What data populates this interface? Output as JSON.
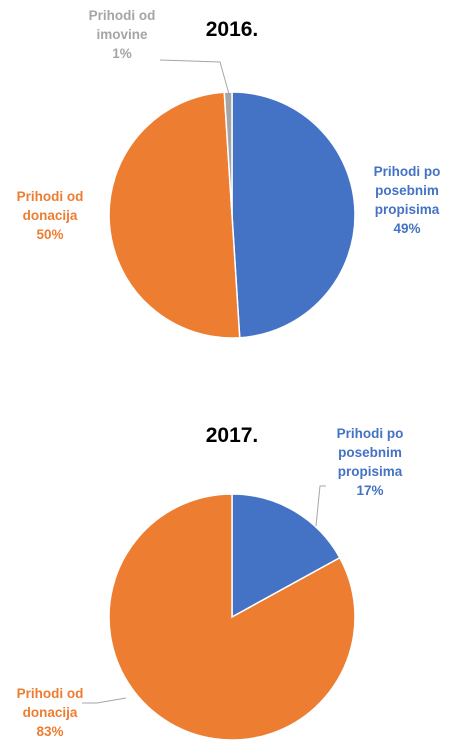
{
  "chart_data": [
    {
      "type": "pie",
      "title": "2016.",
      "categories": [
        "Prihodi po posebnim propisima",
        "Prihodi od donacija",
        "Prihodi od imovine"
      ],
      "values": [
        49,
        50,
        1
      ],
      "value_labels": [
        "49%",
        "50%",
        "1%"
      ],
      "colors": [
        "#4472c4",
        "#ed7d31",
        "#a5a5a5"
      ]
    },
    {
      "type": "pie",
      "title": "2017.",
      "categories": [
        "Prihodi po posebnim propisima",
        "Prihodi od donacija"
      ],
      "values": [
        17,
        83
      ],
      "value_labels": [
        "17%",
        "83%"
      ],
      "colors": [
        "#4472c4",
        "#ed7d31"
      ]
    }
  ]
}
